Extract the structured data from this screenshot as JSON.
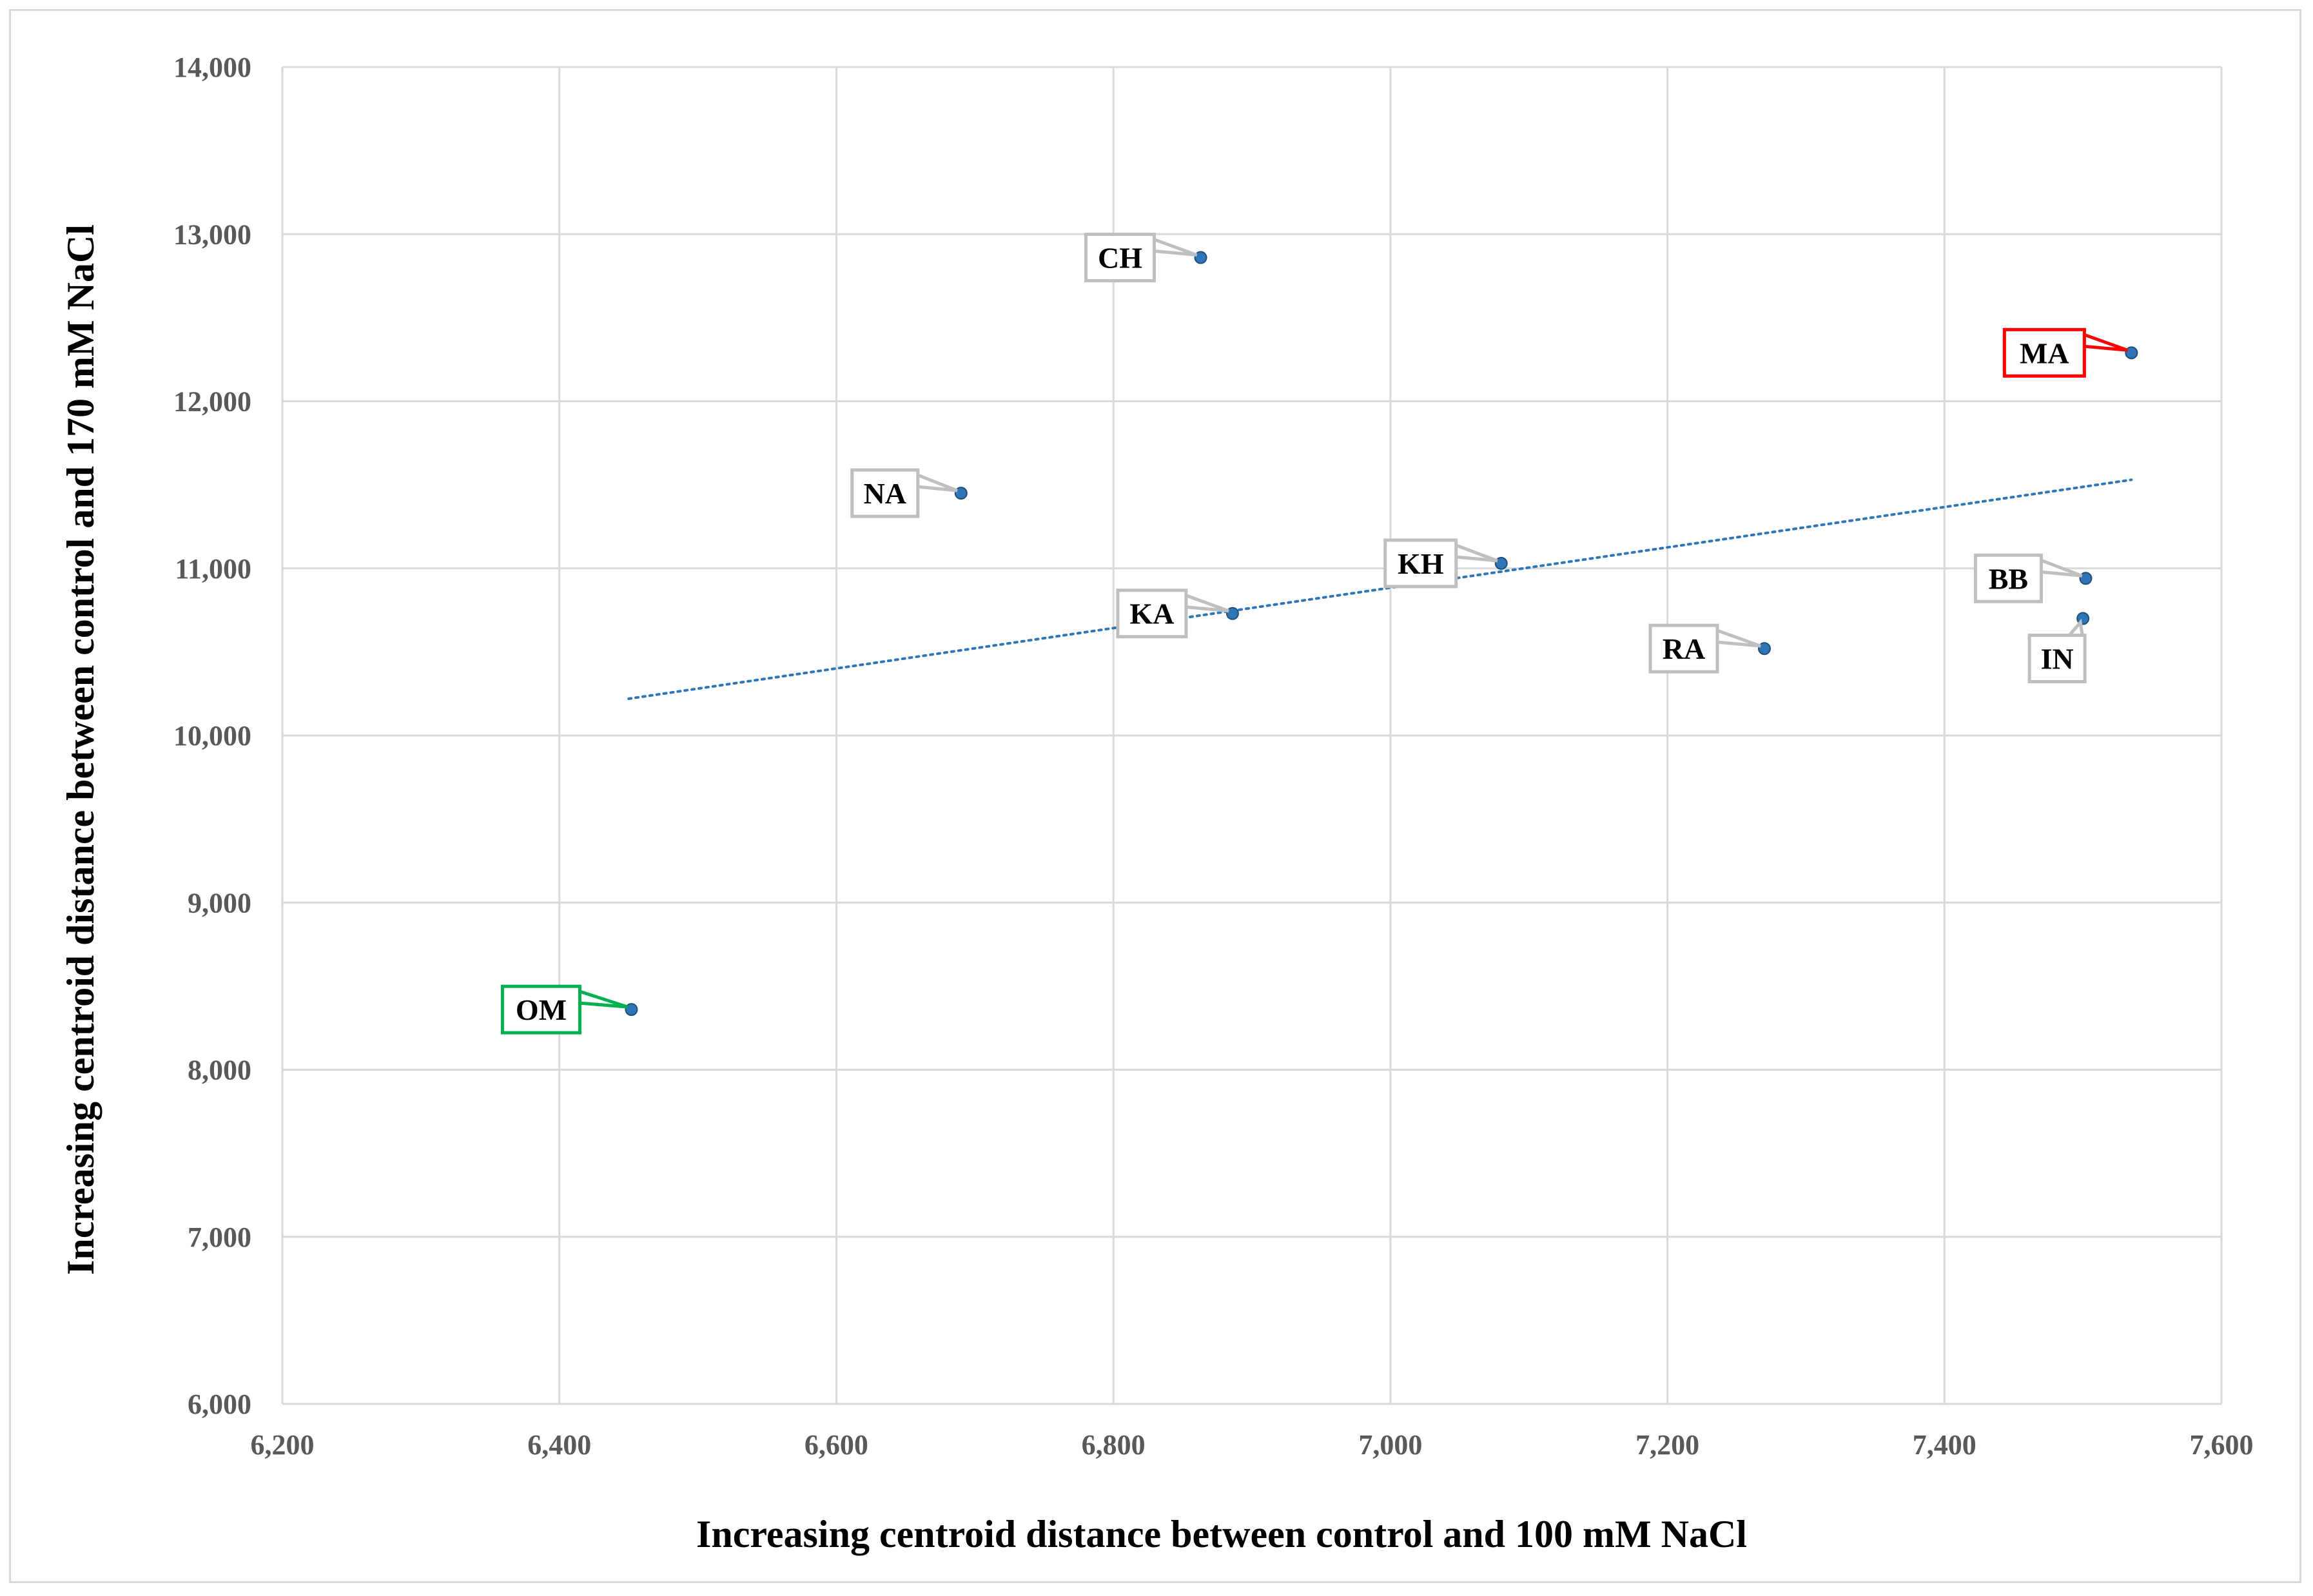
{
  "chart_data": {
    "type": "scatter",
    "title": "",
    "xlabel": "Increasing centroid distance between control and 100 mM NaCl",
    "ylabel": "Increasing centroid distance between control and 170 mM NaCl",
    "xlim": [
      6200,
      7600
    ],
    "ylim": [
      6000,
      14000
    ],
    "xticks": [
      "6,200",
      "6,400",
      "6,600",
      "6,800",
      "7,000",
      "7,200",
      "7,400",
      "7,600"
    ],
    "yticks": [
      "6,000",
      "7,000",
      "8,000",
      "9,000",
      "10,000",
      "11,000",
      "12,000",
      "13,000",
      "14,000"
    ],
    "grid": true,
    "points": [
      {
        "label": "CH",
        "x": 6863,
        "y": 12860,
        "box_color": "#bfbfbf"
      },
      {
        "label": "MA",
        "x": 7535,
        "y": 12290,
        "box_color": "#ff0000"
      },
      {
        "label": "NA",
        "x": 6690,
        "y": 11450,
        "box_color": "#bfbfbf"
      },
      {
        "label": "KH",
        "x": 7080,
        "y": 11030,
        "box_color": "#bfbfbf"
      },
      {
        "label": "KA",
        "x": 6886,
        "y": 10730,
        "box_color": "#bfbfbf"
      },
      {
        "label": "RA",
        "x": 7270,
        "y": 10520,
        "box_color": "#bfbfbf"
      },
      {
        "label": "BB",
        "x": 7502,
        "y": 10940,
        "box_color": "#bfbfbf"
      },
      {
        "label": "IN",
        "x": 7500,
        "y": 10700,
        "box_color": "#bfbfbf"
      },
      {
        "label": "OM",
        "x": 6452,
        "y": 8360,
        "box_color": "#00b050"
      }
    ],
    "trendline": {
      "x": [
        6450,
        7535
      ],
      "y": [
        10220,
        11530
      ],
      "style": "dotted",
      "color": "#2e75b6"
    },
    "marker_color": "#2e75b6"
  }
}
